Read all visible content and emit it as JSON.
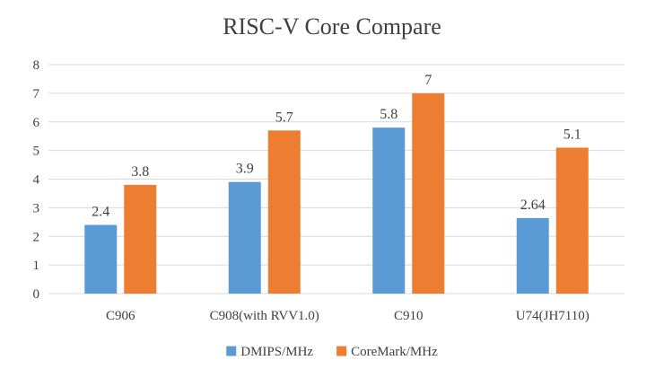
{
  "chart_data": {
    "type": "bar",
    "title": "RISC-V Core Compare",
    "xlabel": "",
    "ylabel": "",
    "categories": [
      "C906",
      "C908(with RVV1.0)",
      "C910",
      "U74(JH7110)"
    ],
    "series": [
      {
        "name": "DMIPS/MHz",
        "values": [
          2.4,
          3.9,
          5.8,
          2.64
        ],
        "labels": [
          "2.4",
          "3.9",
          "5.8",
          "2.64"
        ],
        "color": "#5b9bd5"
      },
      {
        "name": "CoreMark/MHz",
        "values": [
          3.8,
          5.7,
          7,
          5.1
        ],
        "labels": [
          "3.8",
          "5.7",
          "7",
          "5.1"
        ],
        "color": "#ed7d31"
      }
    ],
    "ylim": [
      0,
      8
    ],
    "yticks": [
      "0",
      "1",
      "2",
      "3",
      "4",
      "5",
      "6",
      "7",
      "8"
    ],
    "grid": true,
    "legend": "bottom-center",
    "colors": {
      "grid": "#d9d9d9",
      "text": "#404040",
      "title": "#404040"
    }
  }
}
